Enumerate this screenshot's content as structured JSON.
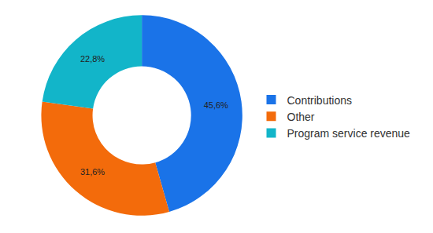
{
  "chart_data": {
    "type": "pie",
    "categories": [
      "Contributions",
      "Other",
      "Program service revenue"
    ],
    "values": [
      45.6,
      31.6,
      22.8
    ],
    "value_labels": [
      "45,6%",
      "31,6%",
      "22,8%"
    ],
    "colors": [
      "#1a73e8",
      "#f36b0b",
      "#12b5c9"
    ],
    "data_labels": true,
    "legend": "right"
  }
}
